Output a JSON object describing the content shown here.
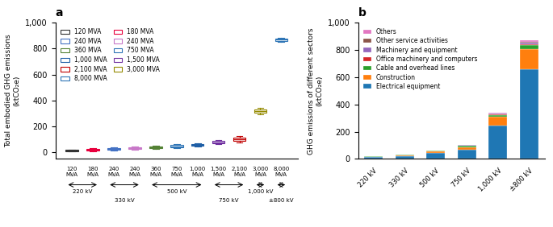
{
  "chart_data": [
    {
      "type": "box",
      "title": "a",
      "ylabel": "Total embodied GHG emissions\n(ktCO₂e)",
      "ylim": [
        -50,
        1000
      ],
      "yticks": [
        0,
        200,
        400,
        600,
        800,
        {
          "value": 1000,
          "label": "1,000"
        }
      ],
      "categories": [
        "120\nMVA",
        "180\nMVA",
        "240\nMVA",
        "240\nMVA",
        "360\nMVA",
        "750\nMVA",
        "1,000\nMVA",
        "1,500\nMVA",
        "2,100\nMVA",
        "3,000\nMVA",
        "8,000\nMVA"
      ],
      "series": [
        {
          "name": "120 MVA",
          "color": "#333333",
          "med": 15,
          "q1": 11,
          "q3": 19,
          "whisker_low": 7,
          "whisker_high": 23
        },
        {
          "name": "180 MVA",
          "color": "#e8003d",
          "med": 20,
          "q1": 15,
          "q3": 26,
          "whisker_low": 10,
          "whisker_high": 31
        },
        {
          "name": "240 MVA",
          "color": "#4472c4",
          "med": 25,
          "q1": 19,
          "q3": 31,
          "whisker_low": 13,
          "whisker_high": 37
        },
        {
          "name": "240 MVA",
          "color": "#c878c8",
          "med": 31,
          "q1": 25,
          "q3": 38,
          "whisker_low": 19,
          "whisker_high": 44
        },
        {
          "name": "360 MVA",
          "color": "#548235",
          "med": 38,
          "q1": 32,
          "q3": 44,
          "whisker_low": 26,
          "whisker_high": 50
        },
        {
          "name": "750 MVA",
          "color": "#2f75b6",
          "med": 48,
          "q1": 42,
          "q3": 56,
          "whisker_low": 36,
          "whisker_high": 62
        },
        {
          "name": "1,000 MVA",
          "color": "#1f5fa6",
          "med": 56,
          "q1": 50,
          "q3": 63,
          "whisker_low": 44,
          "whisker_high": 69
        },
        {
          "name": "1,500 MVA",
          "color": "#7030a0",
          "med": 78,
          "q1": 70,
          "q3": 88,
          "whisker_low": 62,
          "whisker_high": 96
        },
        {
          "name": "2,100 MVA",
          "color": "#c00000",
          "med": 100,
          "q1": 88,
          "q3": 112,
          "whisker_low": 76,
          "whisker_high": 124
        },
        {
          "name": "3,000 MVA",
          "color": "#948a00",
          "med": 320,
          "q1": 308,
          "q3": 333,
          "whisker_low": 296,
          "whisker_high": 345
        },
        {
          "name": "8,000 MVA",
          "color": "#2e75b6",
          "med": 868,
          "q1": 860,
          "q3": 876,
          "whisker_low": 852,
          "whisker_high": 884
        }
      ],
      "groups": [
        {
          "label": "220 kV",
          "size": 2
        },
        {
          "label": "330 kV",
          "size": 2
        },
        {
          "label": "500 kV",
          "size": 3
        },
        {
          "label": "750 kV",
          "size": 2
        },
        {
          "label": "1,000 kV",
          "size": 1
        },
        {
          "label": "±800 kV",
          "size": 1
        }
      ],
      "legend": "upper left"
    },
    {
      "type": "bar",
      "stacked": true,
      "title": "b",
      "ylabel": "GHG emissions of different sectors\n(ktCO₂e)",
      "ylim": [
        0,
        1000
      ],
      "yticks": [
        0,
        200,
        400,
        600,
        800,
        {
          "value": 1000,
          "label": "1,000"
        }
      ],
      "categories": [
        "220 kV",
        "330 kV",
        "500 kV",
        "750 kV",
        "1,000 kV",
        "±800 kV"
      ],
      "series": [
        {
          "name": "Electrical equipment",
          "values": [
            12,
            20,
            45,
            70,
            245,
            660
          ]
        },
        {
          "name": "Construction",
          "values": [
            4,
            6,
            10,
            18,
            62,
            145
          ]
        },
        {
          "name": "Cable and overhead lines",
          "values": [
            2,
            3,
            5,
            8,
            15,
            30
          ]
        },
        {
          "name": "Office machinery and computers",
          "values": [
            0.5,
            0.8,
            1.5,
            2,
            4,
            8
          ]
        },
        {
          "name": "Machinery and equipment",
          "values": [
            0.5,
            0.7,
            1.2,
            2,
            4.5,
            10
          ]
        },
        {
          "name": "Other service activities",
          "values": [
            0.3,
            0.5,
            0.8,
            1.5,
            3,
            7
          ]
        },
        {
          "name": "Others",
          "values": [
            0.2,
            0.4,
            0.7,
            1.5,
            5,
            10
          ]
        }
      ],
      "legend": "upper left"
    }
  ]
}
